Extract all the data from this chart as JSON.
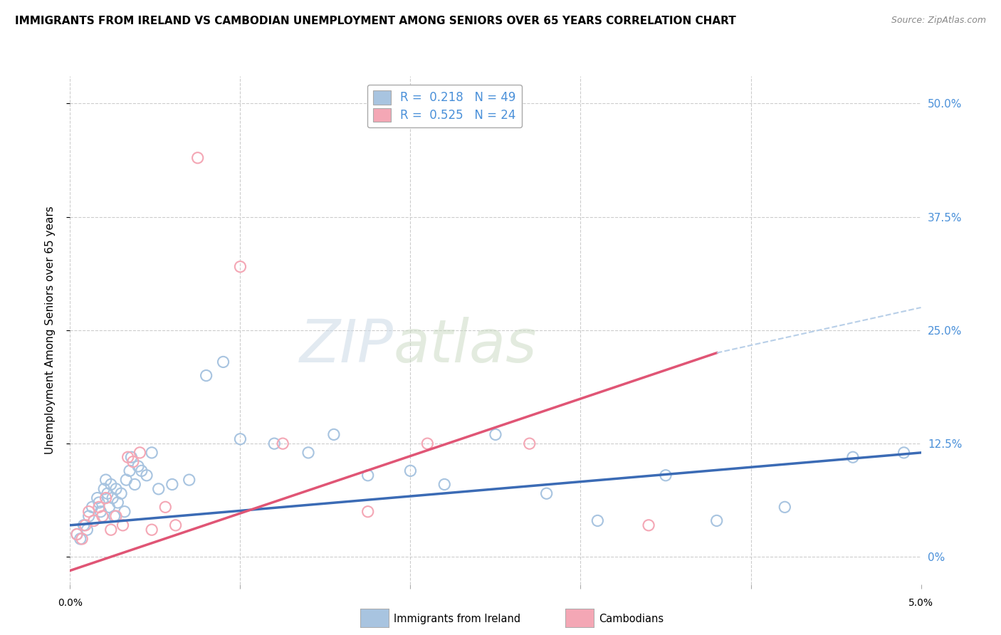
{
  "title": "IMMIGRANTS FROM IRELAND VS CAMBODIAN UNEMPLOYMENT AMONG SENIORS OVER 65 YEARS CORRELATION CHART",
  "source": "Source: ZipAtlas.com",
  "ylabel": "Unemployment Among Seniors over 65 years",
  "xlim": [
    0.0,
    5.0
  ],
  "ylim": [
    -3.0,
    53.0
  ],
  "yticks": [
    0.0,
    12.5,
    25.0,
    37.5,
    50.0
  ],
  "ytick_labels_right": [
    "0%",
    "12.5%",
    "25.0%",
    "37.5%",
    "50.0%"
  ],
  "legend_r1": "R =  0.218",
  "legend_n1": "N = 49",
  "legend_r2": "R =  0.525",
  "legend_n2": "N = 24",
  "color_ireland": "#a8c4e0",
  "color_cambodian": "#f4a7b5",
  "color_blue_text": "#4a90d9",
  "color_line_ireland": "#3b6bb5",
  "color_line_cambodian": "#e05575",
  "color_line_dashed": "#b8cfe8",
  "background_color": "#ffffff",
  "watermark_zip": "ZIP",
  "watermark_atlas": "atlas",
  "ireland_x": [
    0.04,
    0.06,
    0.08,
    0.1,
    0.11,
    0.13,
    0.14,
    0.16,
    0.17,
    0.18,
    0.2,
    0.21,
    0.22,
    0.23,
    0.24,
    0.25,
    0.26,
    0.27,
    0.28,
    0.3,
    0.32,
    0.33,
    0.35,
    0.36,
    0.38,
    0.4,
    0.42,
    0.45,
    0.48,
    0.52,
    0.6,
    0.7,
    0.8,
    0.9,
    1.0,
    1.2,
    1.4,
    1.55,
    1.75,
    2.0,
    2.2,
    2.5,
    2.8,
    3.1,
    3.5,
    3.8,
    4.2,
    4.6,
    4.9
  ],
  "ireland_y": [
    2.5,
    2.0,
    3.5,
    3.0,
    4.5,
    5.5,
    4.0,
    6.5,
    6.0,
    5.0,
    7.5,
    8.5,
    7.0,
    5.5,
    8.0,
    6.5,
    4.5,
    7.5,
    6.0,
    7.0,
    5.0,
    8.5,
    9.5,
    11.0,
    8.0,
    10.0,
    9.5,
    9.0,
    11.5,
    7.5,
    8.0,
    8.5,
    20.0,
    21.5,
    13.0,
    12.5,
    11.5,
    13.5,
    9.0,
    9.5,
    8.0,
    13.5,
    7.0,
    4.0,
    9.0,
    4.0,
    5.5,
    11.0,
    11.5
  ],
  "cambodian_x": [
    0.04,
    0.07,
    0.09,
    0.11,
    0.14,
    0.17,
    0.19,
    0.21,
    0.24,
    0.27,
    0.31,
    0.34,
    0.37,
    0.41,
    0.48,
    0.56,
    0.62,
    0.75,
    1.0,
    1.25,
    1.75,
    2.1,
    2.7,
    3.4
  ],
  "cambodian_y": [
    2.5,
    2.0,
    3.5,
    5.0,
    4.0,
    5.5,
    4.5,
    6.5,
    3.0,
    4.5,
    3.5,
    11.0,
    10.5,
    11.5,
    3.0,
    5.5,
    3.5,
    44.0,
    32.0,
    12.5,
    5.0,
    12.5,
    12.5,
    3.5
  ],
  "ireland_trend_x": [
    0.0,
    5.0
  ],
  "ireland_trend_y": [
    3.5,
    11.5
  ],
  "cambodian_trend_x": [
    0.0,
    3.8
  ],
  "cambodian_trend_y": [
    -1.5,
    22.5
  ],
  "dashed_line_x": [
    3.8,
    5.0
  ],
  "dashed_line_y": [
    22.5,
    27.5
  ],
  "xtick_positions": [
    0.0,
    1.0,
    2.0,
    3.0,
    4.0,
    5.0
  ]
}
